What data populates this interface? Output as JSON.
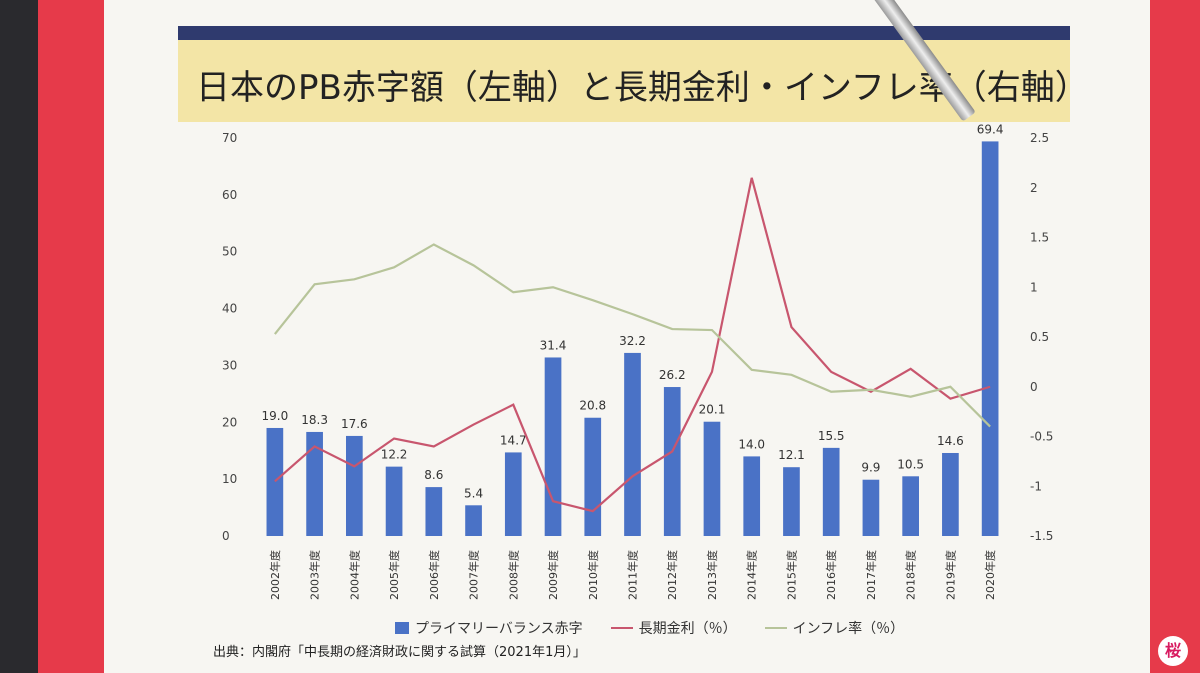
{
  "title": "日本のPB赤字額（左軸）と長期金利・インフレ率（右軸）",
  "source": "出典：内閣府「中長期の経済財政に関する試算（2021年1月）」",
  "logo_text": "桜",
  "colors": {
    "bar": "#4a72c6",
    "interest_line": "#c8566e",
    "inflation_line": "#b7c49a",
    "title_band": "#f3e5a6",
    "title_rule": "#2f3a6e",
    "frame": "#e63a4a"
  },
  "chart_data": {
    "type": "bar",
    "categories": [
      "2002年度",
      "2003年度",
      "2004年度",
      "2005年度",
      "2006年度",
      "2007年度",
      "2008年度",
      "2009年度",
      "2010年度",
      "2011年度",
      "2012年度",
      "2013年度",
      "2014年度",
      "2015年度",
      "2016年度",
      "2017年度",
      "2018年度",
      "2019年度",
      "2020年度"
    ],
    "y_left": {
      "min": 0,
      "max": 70,
      "ticks": [
        "0",
        "10",
        "20",
        "30",
        "40",
        "50",
        "60",
        "70"
      ]
    },
    "y_right": {
      "min": -1.5,
      "max": 2.5,
      "ticks": [
        "-1.5",
        "-1",
        "-0.5",
        "0",
        "0.5",
        "1",
        "1.5",
        "2",
        "2.5"
      ]
    },
    "series": [
      {
        "name": "プライマリーバランス赤字",
        "kind": "bar",
        "axis": "left",
        "values": [
          19.0,
          18.3,
          17.6,
          12.2,
          8.6,
          5.4,
          14.7,
          31.4,
          20.8,
          32.2,
          26.2,
          20.1,
          14.0,
          12.1,
          15.5,
          9.9,
          10.5,
          14.6,
          69.4
        ],
        "labels": [
          "19.0",
          "18.3",
          "17.6",
          "12.2",
          "8.6",
          "5.4",
          "14.7",
          "31.4",
          "20.8",
          "32.2",
          "26.2",
          "20.1",
          "14.0",
          "12.1",
          "15.5",
          "9.9",
          "10.5",
          "14.6",
          "69.4"
        ]
      },
      {
        "name": "長期金利（％）",
        "kind": "line",
        "axis": "right",
        "values": [
          -0.95,
          -0.6,
          -0.8,
          -0.52,
          -0.6,
          -0.38,
          -0.18,
          -1.15,
          -1.25,
          -0.9,
          -0.65,
          0.15,
          2.1,
          0.6,
          0.15,
          -0.05,
          0.18,
          -0.12,
          0.0
        ]
      },
      {
        "name": "インフレ率（％）",
        "kind": "line",
        "axis": "right",
        "values": [
          0.53,
          1.03,
          1.08,
          1.2,
          1.43,
          1.22,
          0.95,
          1.0,
          0.87,
          0.73,
          0.58,
          0.57,
          0.17,
          0.12,
          -0.05,
          -0.03,
          -0.1,
          0.0,
          -0.4
        ]
      }
    ]
  }
}
